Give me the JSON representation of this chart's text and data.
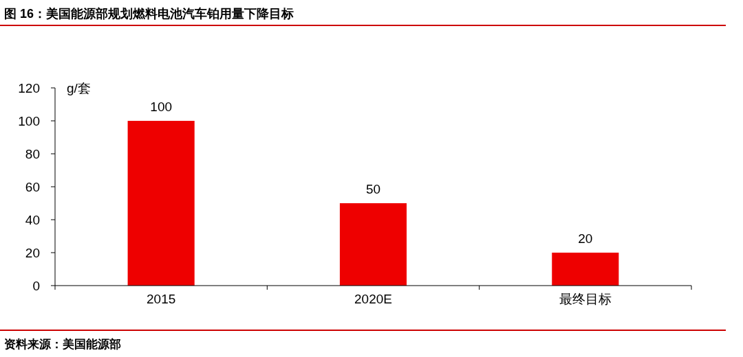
{
  "chart_data": {
    "type": "bar",
    "title": "图 16：美国能源部规划燃料电池汽车铂用量下降目标",
    "ylabel": "g/套",
    "categories": [
      "2015",
      "2020E",
      "最终目标"
    ],
    "values": [
      100,
      50,
      20
    ],
    "color": "#ee0000",
    "ylim": [
      0,
      120
    ],
    "yticks": [
      0,
      20,
      40,
      60,
      80,
      100,
      120
    ],
    "data_labels": true,
    "annotations": [
      "资料来源：美国能源部"
    ]
  }
}
